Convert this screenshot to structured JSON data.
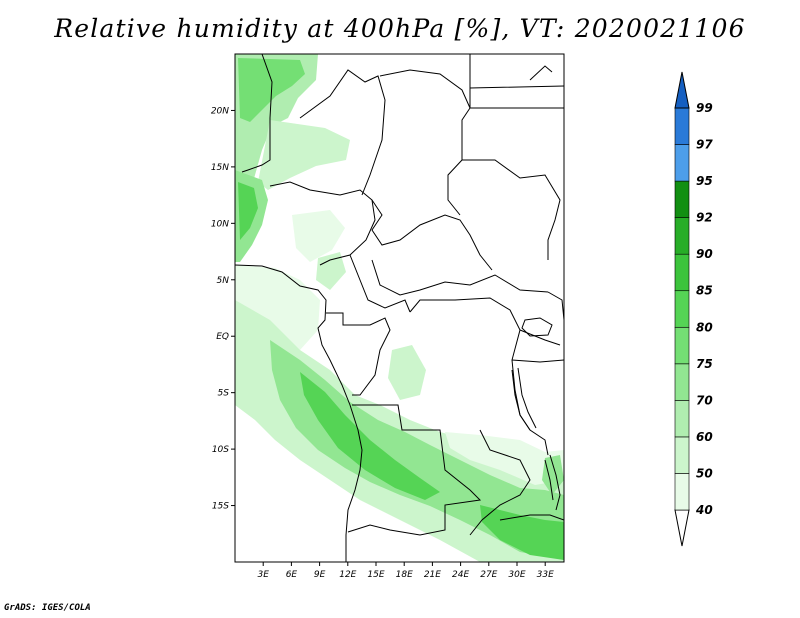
{
  "title": "Relative humidity at 400hPa [%], VT: 2020021106",
  "credit": "GrADS: IGES/COLA",
  "map": {
    "lat_labels": [
      "20N",
      "15N",
      "10N",
      "5N",
      "EQ",
      "5S",
      "10S",
      "15S"
    ],
    "lat_values": [
      20,
      15,
      10,
      5,
      0,
      -5,
      -10,
      -15
    ],
    "lon_labels": [
      "3E",
      "6E",
      "9E",
      "12E",
      "15E",
      "18E",
      "21E",
      "24E",
      "27E",
      "30E",
      "33E"
    ],
    "lon_values": [
      3,
      6,
      9,
      12,
      15,
      18,
      21,
      24,
      27,
      30,
      33
    ],
    "lon_range": [
      0,
      35
    ],
    "lat_range": [
      -20,
      25
    ]
  },
  "colorbar": {
    "levels": [
      "40",
      "50",
      "60",
      "70",
      "75",
      "80",
      "85",
      "90",
      "92",
      "95",
      "97",
      "99"
    ],
    "colors": [
      "#ffffff",
      "#e8fbe8",
      "#ccf5cc",
      "#b0edb0",
      "#92e692",
      "#74df74",
      "#55d455",
      "#3cc43c",
      "#27ad27",
      "#128f12",
      "#4d9eea",
      "#2a7ad8",
      "#155fc1"
    ]
  }
}
